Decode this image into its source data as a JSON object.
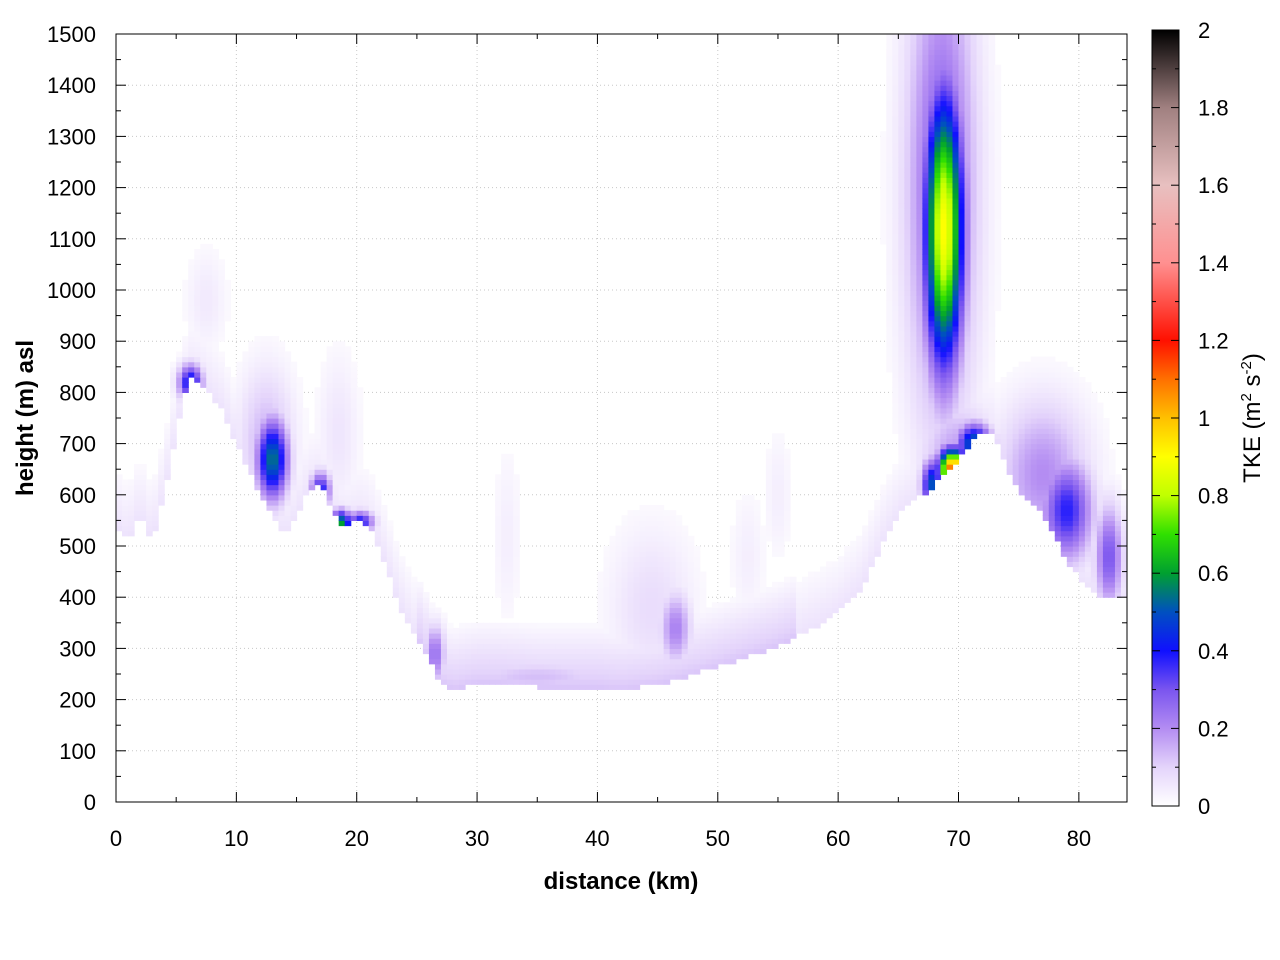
{
  "chart_data": {
    "type": "heatmap",
    "title": "",
    "xlabel": "distance (km)",
    "ylabel": "height (m) asl",
    "xlim": [
      0,
      84
    ],
    "ylim": [
      0,
      1500
    ],
    "xticks": [
      "0",
      "10",
      "20",
      "30",
      "40",
      "50",
      "60",
      "70",
      "80"
    ],
    "yticks": [
      "0",
      "100",
      "200",
      "300",
      "400",
      "500",
      "600",
      "700",
      "800",
      "900",
      "1000",
      "1100",
      "1200",
      "1300",
      "1400",
      "1500"
    ],
    "grid": true,
    "colorbar": {
      "label_main": "TKE (m",
      "label_sup1": "2",
      "label_mid": " s",
      "label_sup2": "-2",
      "label_end": ")",
      "range": [
        0,
        2
      ],
      "ticks": [
        "0",
        "0.2",
        "0.4",
        "0.6",
        "0.8",
        "1",
        "1.2",
        "1.4",
        "1.6",
        "1.8",
        "2"
      ],
      "stops": [
        {
          "v": 0.0,
          "c": "#ffffff"
        },
        {
          "v": 0.1,
          "c": "#e4d4fb"
        },
        {
          "v": 0.2,
          "c": "#b38cf2"
        },
        {
          "v": 0.3,
          "c": "#7a55ef"
        },
        {
          "v": 0.4,
          "c": "#1010ff"
        },
        {
          "v": 0.5,
          "c": "#0050c0"
        },
        {
          "v": 0.6,
          "c": "#00a030"
        },
        {
          "v": 0.7,
          "c": "#30e000"
        },
        {
          "v": 0.8,
          "c": "#c0ff00"
        },
        {
          "v": 0.9,
          "c": "#ffff00"
        },
        {
          "v": 1.0,
          "c": "#ffc000"
        },
        {
          "v": 1.1,
          "c": "#ff7000"
        },
        {
          "v": 1.2,
          "c": "#ff1000"
        },
        {
          "v": 1.4,
          "c": "#ff9090"
        },
        {
          "v": 1.6,
          "c": "#e8c0c0"
        },
        {
          "v": 1.8,
          "c": "#a08080"
        },
        {
          "v": 2.0,
          "c": "#000000"
        }
      ]
    },
    "terrain": [
      [
        0,
        540
      ],
      [
        1,
        510
      ],
      [
        2,
        560
      ],
      [
        3,
        510
      ],
      [
        4,
        600
      ],
      [
        5,
        720
      ],
      [
        6,
        830
      ],
      [
        7,
        820
      ],
      [
        8,
        790
      ],
      [
        9,
        760
      ],
      [
        10,
        700
      ],
      [
        11,
        650
      ],
      [
        12,
        600
      ],
      [
        13,
        555
      ],
      [
        14,
        520
      ],
      [
        15,
        560
      ],
      [
        16,
        610
      ],
      [
        17,
        620
      ],
      [
        18,
        570
      ],
      [
        19,
        535
      ],
      [
        20,
        550
      ],
      [
        21,
        540
      ],
      [
        22,
        490
      ],
      [
        23,
        420
      ],
      [
        24,
        360
      ],
      [
        25,
        320
      ],
      [
        26,
        280
      ],
      [
        27,
        230
      ],
      [
        28,
        220
      ],
      [
        30,
        232
      ],
      [
        32,
        232
      ],
      [
        35,
        225
      ],
      [
        40,
        225
      ],
      [
        42,
        220
      ],
      [
        45,
        230
      ],
      [
        48,
        250
      ],
      [
        50,
        265
      ],
      [
        55,
        305
      ],
      [
        58,
        340
      ],
      [
        60,
        370
      ],
      [
        62,
        420
      ],
      [
        63,
        470
      ],
      [
        64,
        520
      ],
      [
        65,
        560
      ],
      [
        66,
        585
      ],
      [
        67,
        600
      ],
      [
        68,
        620
      ],
      [
        69,
        650
      ],
      [
        70,
        670
      ],
      [
        71,
        700
      ],
      [
        72,
        725
      ],
      [
        73,
        715
      ],
      [
        74,
        650
      ],
      [
        75,
        610
      ],
      [
        76,
        590
      ],
      [
        77,
        560
      ],
      [
        78,
        520
      ],
      [
        79,
        470
      ],
      [
        80,
        440
      ],
      [
        81,
        420
      ],
      [
        82,
        400
      ],
      [
        83.5,
        400
      ]
    ],
    "features": [
      {
        "x": 6.2,
        "y": 820,
        "sx": 0.7,
        "sy": 25,
        "v": 0.45
      },
      {
        "x": 7.5,
        "y": 980,
        "sx": 1.2,
        "sy": 70,
        "v": 0.05
      },
      {
        "x": 13.0,
        "y": 670,
        "sx": 0.9,
        "sy": 55,
        "v": 0.55
      },
      {
        "x": 12.5,
        "y": 700,
        "sx": 1.6,
        "sy": 100,
        "v": 0.15
      },
      {
        "x": 17.0,
        "y": 610,
        "sx": 0.6,
        "sy": 25,
        "v": 0.4
      },
      {
        "x": 18.7,
        "y": 545,
        "sx": 0.6,
        "sy": 18,
        "v": 0.6
      },
      {
        "x": 20.3,
        "y": 548,
        "sx": 0.8,
        "sy": 15,
        "v": 0.4
      },
      {
        "x": 18.5,
        "y": 720,
        "sx": 1.2,
        "sy": 110,
        "v": 0.06
      },
      {
        "x": 26.5,
        "y": 290,
        "sx": 0.6,
        "sy": 40,
        "v": 0.25
      },
      {
        "x": 32.5,
        "y": 520,
        "sx": 0.8,
        "sy": 120,
        "v": 0.04
      },
      {
        "x": 35.0,
        "y": 245,
        "sx": 5.0,
        "sy": 25,
        "v": 0.13
      },
      {
        "x": 46.5,
        "y": 340,
        "sx": 0.9,
        "sy": 50,
        "v": 0.22
      },
      {
        "x": 44.5,
        "y": 380,
        "sx": 2.5,
        "sy": 110,
        "v": 0.08
      },
      {
        "x": 52.5,
        "y": 480,
        "sx": 1.0,
        "sy": 90,
        "v": 0.04
      },
      {
        "x": 55.0,
        "y": 600,
        "sx": 0.8,
        "sy": 90,
        "v": 0.04
      },
      {
        "x": 68.8,
        "y": 1120,
        "sx": 1.15,
        "sy": 190,
        "v": 0.9
      },
      {
        "x": 68.6,
        "y": 1200,
        "sx": 2.0,
        "sy": 320,
        "v": 0.3
      },
      {
        "x": 68.0,
        "y": 560,
        "sx": 1.2,
        "sy": 200,
        "v": 0.05
      },
      {
        "x": 67.8,
        "y": 620,
        "sx": 0.6,
        "sy": 35,
        "v": 0.5
      },
      {
        "x": 69.5,
        "y": 650,
        "sx": 0.8,
        "sy": 28,
        "v": 1.15
      },
      {
        "x": 71.3,
        "y": 700,
        "sx": 1.0,
        "sy": 28,
        "v": 0.55
      },
      {
        "x": 70.0,
        "y": 680,
        "sx": 2.2,
        "sy": 70,
        "v": 0.18
      },
      {
        "x": 79.0,
        "y": 570,
        "sx": 1.5,
        "sy": 70,
        "v": 0.38
      },
      {
        "x": 77.0,
        "y": 640,
        "sx": 2.6,
        "sy": 100,
        "v": 0.2
      },
      {
        "x": 82.5,
        "y": 480,
        "sx": 0.8,
        "sy": 70,
        "v": 0.3
      }
    ]
  }
}
